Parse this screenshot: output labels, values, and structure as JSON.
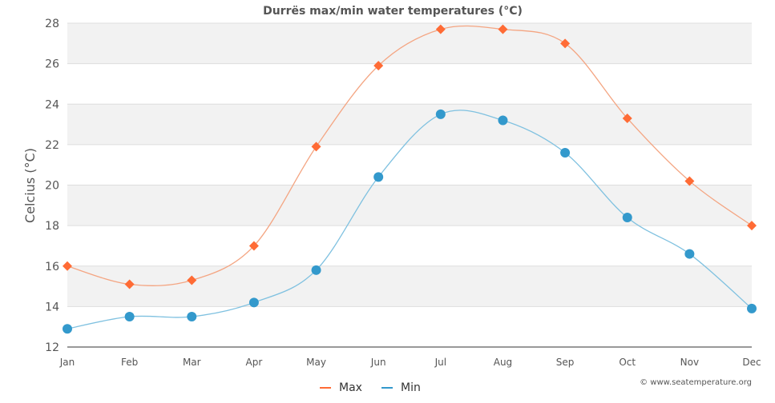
{
  "chart_data": {
    "type": "line",
    "title": "Durrës max/min water temperatures (°C)",
    "xlabel": "",
    "ylabel": "Celcius (°C)",
    "categories": [
      "Jan",
      "Feb",
      "Mar",
      "Apr",
      "May",
      "Jun",
      "Jul",
      "Aug",
      "Sep",
      "Oct",
      "Nov",
      "Dec"
    ],
    "ylim": [
      12,
      28
    ],
    "yticks": [
      12,
      14,
      16,
      18,
      20,
      22,
      24,
      26,
      28
    ],
    "grid": true,
    "legend_position": "bottom",
    "series": [
      {
        "name": "Max",
        "color": "#ff6b35",
        "line_color": "#f4a582",
        "marker": "diamond",
        "values": [
          16.0,
          15.1,
          15.3,
          17.0,
          21.9,
          25.9,
          27.7,
          27.7,
          27.0,
          23.3,
          20.2,
          18.0
        ]
      },
      {
        "name": "Min",
        "color": "#3399cc",
        "line_color": "#7fc1e0",
        "marker": "circle",
        "values": [
          12.9,
          13.5,
          13.5,
          14.2,
          15.8,
          20.4,
          23.5,
          23.2,
          21.6,
          18.4,
          16.6,
          13.9
        ]
      }
    ],
    "credit": "© www.seatemperature.org"
  }
}
